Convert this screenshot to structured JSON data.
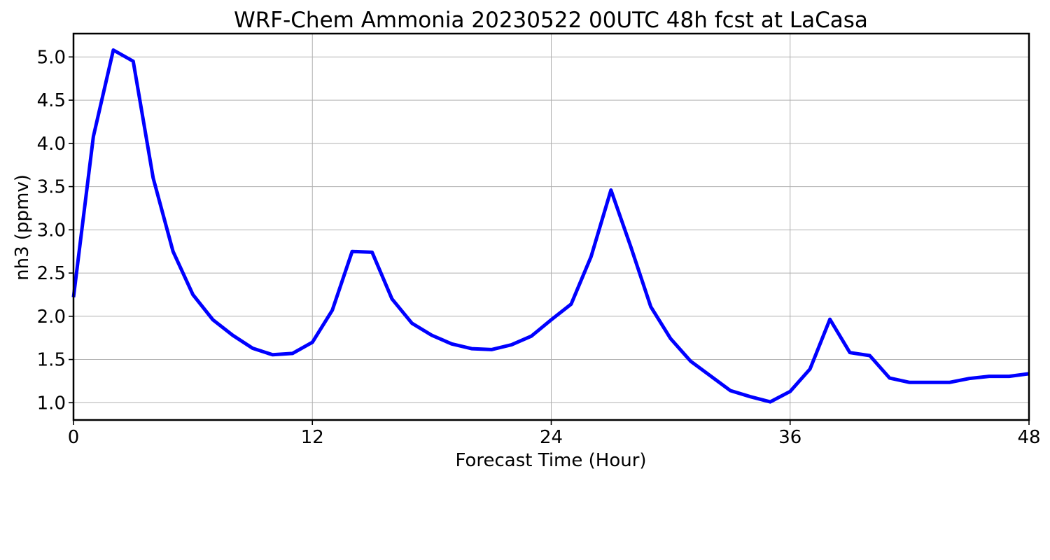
{
  "chart_data": {
    "type": "line",
    "title": "WRF-Chem Ammonia  20230522 00UTC 48h fcst at LaCasa",
    "xlabel": "Forecast Time (Hour)",
    "ylabel": "nh3  (ppmv)",
    "xlim": [
      0,
      48
    ],
    "ylim": [
      0.8,
      5.27
    ],
    "xticks": [
      0,
      12,
      24,
      36,
      48
    ],
    "yticks": [
      1.0,
      1.5,
      2.0,
      2.5,
      3.0,
      3.5,
      4.0,
      4.5,
      5.0
    ],
    "ytick_labels": [
      "1.0",
      "1.5",
      "2.0",
      "2.5",
      "3.0",
      "3.5",
      "4.0",
      "4.5",
      "5.0"
    ],
    "xtick_labels": [
      "0",
      "12",
      "24",
      "36",
      "48"
    ],
    "grid": true,
    "series": [
      {
        "color": "#0000ff",
        "x": [
          0,
          1,
          2,
          3,
          4,
          5,
          6,
          7,
          8,
          9,
          10,
          11,
          12,
          13,
          14,
          15,
          16,
          17,
          18,
          19,
          20,
          21,
          22,
          23,
          24,
          25,
          26,
          27,
          28,
          29,
          30,
          31,
          32,
          33,
          34,
          35,
          36,
          37,
          38,
          39,
          40,
          41,
          42,
          43,
          44,
          45,
          46,
          47,
          48
        ],
        "values": [
          2.22,
          4.08,
          5.08,
          4.95,
          3.6,
          2.75,
          2.25,
          1.96,
          1.78,
          1.63,
          1.555,
          1.57,
          1.7,
          2.07,
          2.75,
          2.74,
          2.2,
          1.92,
          1.78,
          1.68,
          1.625,
          1.615,
          1.67,
          1.77,
          1.96,
          2.14,
          2.69,
          3.46,
          2.8,
          2.11,
          1.74,
          1.48,
          1.31,
          1.14,
          1.07,
          1.01,
          1.13,
          1.39,
          1.965,
          1.58,
          1.545,
          1.285,
          1.235,
          1.235,
          1.235,
          1.28,
          1.305,
          1.305,
          1.335
        ]
      }
    ]
  }
}
